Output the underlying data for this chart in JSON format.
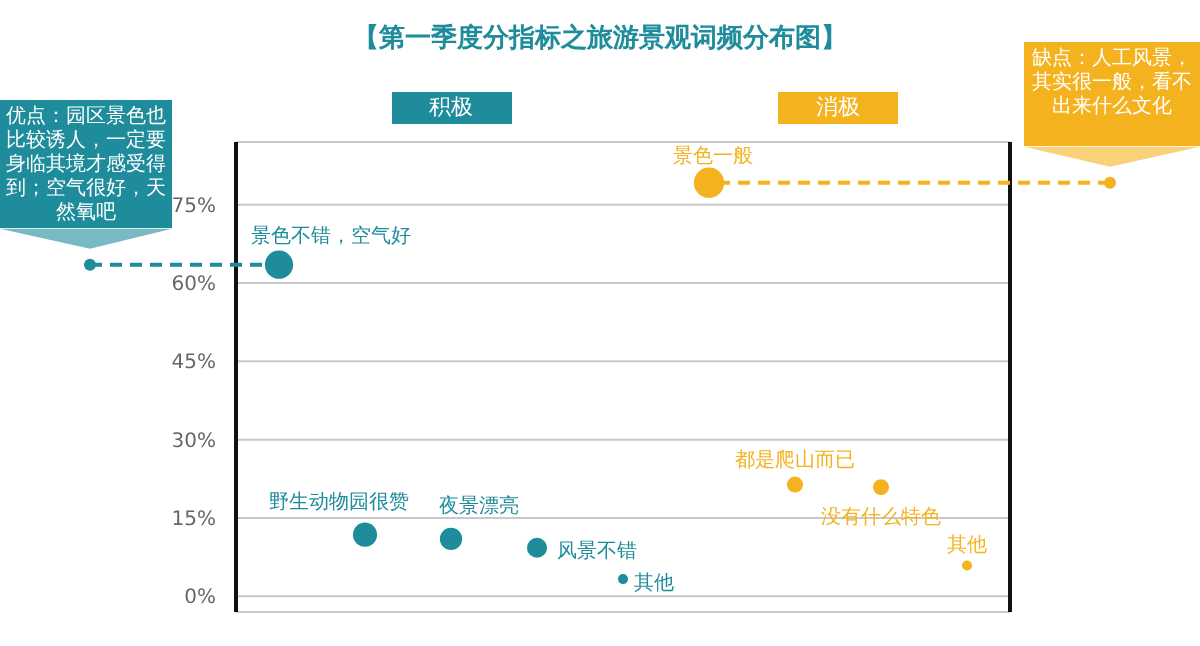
{
  "chart_data": {
    "type": "bubble",
    "title": "【第一季度分指标之旅游景观词频分布图】",
    "categories": [
      null,
      null,
      null,
      null,
      null,
      null,
      null,
      null,
      null
    ],
    "series": [
      {
        "name": "积极",
        "color": "#1e8c9b",
        "values": [
          63.5,
          11.8,
          11.0,
          9.3,
          3.3,
          null,
          null,
          null,
          null
        ],
        "sizes": [
          0.87,
          0.64,
          0.54,
          0.44,
          0.11,
          null,
          null,
          null,
          null
        ],
        "value_labels": [
          "景色不错，空气好",
          "野生动物园很赞",
          "夜景漂亮",
          "风景不错",
          "其他",
          null,
          null,
          null,
          null
        ]
      },
      {
        "name": "消极",
        "color": "#f5b21f",
        "values": [
          null,
          null,
          null,
          null,
          null,
          79.2,
          21.4,
          20.9,
          5.9
        ],
        "sizes": [
          null,
          null,
          null,
          null,
          null,
          1,
          0.28,
          0.28,
          0.11
        ],
        "value_labels": [
          null,
          null,
          null,
          null,
          null,
          "景色一般",
          "都是爬山而已",
          "没有什么特色",
          "其他"
        ]
      }
    ],
    "ylim": [
      -3,
      87
    ],
    "yticks": [
      {
        "value": 0,
        "label": "0%"
      },
      {
        "value": 15,
        "label": "15%"
      },
      {
        "value": 30,
        "label": "30%"
      },
      {
        "value": 45,
        "label": "45%"
      },
      {
        "value": 60,
        "label": "60%"
      },
      {
        "value": 75,
        "label": "75%"
      }
    ],
    "grid": "y",
    "legend": "top",
    "tick_labels": "y",
    "annotations": [
      "优点：园区景色也比较诱人，一定要身临其境才感受得到；空气很好，天然氧吧",
      "缺点：人工风景，其实很一般，看不出来什么文化"
    ]
  }
}
